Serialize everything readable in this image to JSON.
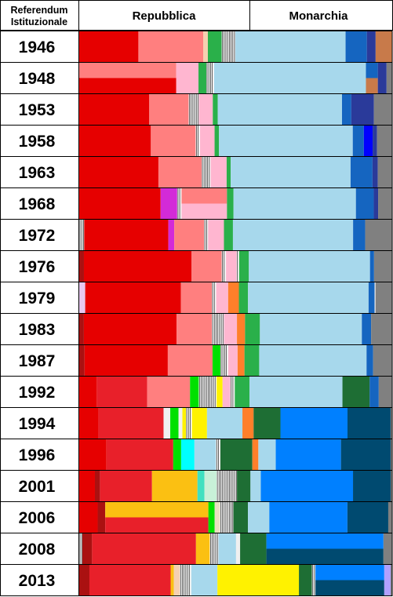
{
  "header": {
    "corner_line1": "Referendum",
    "corner_line2": "Istituzionale",
    "left_label": "Repubblica",
    "right_label": "Monarchia"
  },
  "chart_data": {
    "type": "bar",
    "orientation": "horizontal-stacked",
    "note_scale": "each row spans 0-100% of the vote; divider column marks the 1946 referendum split",
    "divider_value": 54.3,
    "categories": [
      "1946",
      "1948",
      "1953",
      "1958",
      "1963",
      "1968",
      "1972",
      "1976",
      "1979",
      "1983",
      "1987",
      "1992",
      "1994",
      "1996",
      "2001",
      "2006",
      "2008",
      "2013"
    ],
    "rows": [
      {
        "year": "1946",
        "segments": [
          {
            "v": 18.9,
            "c": "#e60000"
          },
          {
            "v": 20.7,
            "c": "#ff7f7f"
          },
          {
            "v": 1.5,
            "c": "#f5d0b0"
          },
          {
            "v": 4.4,
            "c": "#2ab04a"
          },
          {
            "v": 4.4,
            "c": "#f0f0f0",
            "striped": true
          },
          {
            "v": 35.2,
            "c": "#a7d8ec"
          },
          {
            "v": 6.8,
            "c": "#1565c0"
          },
          {
            "v": 2.8,
            "c": "#2a3a9a"
          },
          {
            "v": 5.3,
            "c": "#c87a4a"
          }
        ]
      },
      {
        "year": "1948",
        "segments": [
          {
            "v": 31.0,
            "c": "#e60000",
            "split": [
              {
                "v": 31.0,
                "c": "#ff7f7f",
                "top": true
              }
            ]
          },
          {
            "v": 7.1,
            "c": "#ffb6d0"
          },
          {
            "v": 2.5,
            "c": "#2ab04a"
          },
          {
            "v": 2.5,
            "c": "#f0f0f0",
            "striped": true
          },
          {
            "v": 48.5,
            "c": "#a7d8ec"
          },
          {
            "v": 3.8,
            "c": "#1565c0",
            "bottom": "#c87a4a"
          },
          {
            "v": 2.8,
            "c": "#2a3a9a"
          },
          {
            "v": 1.8,
            "c": "#808080"
          }
        ]
      },
      {
        "year": "1953",
        "segments": [
          {
            "v": 22.6,
            "c": "#e60000"
          },
          {
            "v": 12.7,
            "c": "#ff7f7f"
          },
          {
            "v": 3.3,
            "c": "#f0f0f0",
            "striped": true
          },
          {
            "v": 4.5,
            "c": "#ffb6d0"
          },
          {
            "v": 1.6,
            "c": "#2ab04a"
          },
          {
            "v": 40.1,
            "c": "#a7d8ec"
          },
          {
            "v": 3.0,
            "c": "#1565c0"
          },
          {
            "v": 7.3,
            "c": "#2a3a9a"
          },
          {
            "v": 5.9,
            "c": "#808080"
          }
        ]
      },
      {
        "year": "1958",
        "segments": [
          {
            "v": 22.7,
            "c": "#e60000"
          },
          {
            "v": 14.2,
            "c": "#ff7f7f"
          },
          {
            "v": 1.4,
            "c": "#f0f0f0",
            "striped": true
          },
          {
            "v": 4.6,
            "c": "#ffb6d0"
          },
          {
            "v": 1.4,
            "c": "#2ab04a"
          },
          {
            "v": 42.4,
            "c": "#a7d8ec"
          },
          {
            "v": 3.5,
            "c": "#1565c0"
          },
          {
            "v": 2.8,
            "c": "#0000ff"
          },
          {
            "v": 1.4,
            "c": "#2a3a9a"
          },
          {
            "v": 4.8,
            "c": "#808080"
          }
        ]
      },
      {
        "year": "1963",
        "segments": [
          {
            "v": 25.3,
            "c": "#e60000"
          },
          {
            "v": 13.8,
            "c": "#ff7f7f"
          },
          {
            "v": 2.9,
            "c": "#f0f0f0",
            "striped": true
          },
          {
            "v": 5.1,
            "c": "#ffb6d0"
          },
          {
            "v": 1.3,
            "c": "#2ab04a"
          },
          {
            "v": 38.3,
            "c": "#a7d8ec"
          },
          {
            "v": 7.0,
            "c": "#1565c0"
          },
          {
            "v": 1.7,
            "c": "#2a3a9a"
          },
          {
            "v": 4.6,
            "c": "#808080"
          }
        ]
      },
      {
        "year": "1968",
        "segments": [
          {
            "v": 26.0,
            "c": "#e60000"
          },
          {
            "v": 5.3,
            "c": "#d32ad8"
          },
          {
            "v": 1.4,
            "c": "#f0f0f0",
            "striped": true
          },
          {
            "v": 14.5,
            "c": "#ff7f7f",
            "bottom": "#ffb6d0"
          },
          {
            "v": 2.1,
            "c": "#2ab04a"
          },
          {
            "v": 39.1,
            "c": "#a7d8ec"
          },
          {
            "v": 5.7,
            "c": "#1565c0"
          },
          {
            "v": 1.4,
            "c": "#2a3a9a"
          },
          {
            "v": 4.5,
            "c": "#808080"
          }
        ]
      },
      {
        "year": "1972",
        "segments": [
          {
            "v": 1.6,
            "c": "#f0f0f0",
            "striped": true
          },
          {
            "v": 27.1,
            "c": "#e60000"
          },
          {
            "v": 1.9,
            "c": "#d32ad8"
          },
          {
            "v": 9.6,
            "c": "#ff7f7f"
          },
          {
            "v": 1.3,
            "c": "#f0f0f0",
            "striped": true
          },
          {
            "v": 5.1,
            "c": "#ffb6d0"
          },
          {
            "v": 2.9,
            "c": "#2ab04a"
          },
          {
            "v": 38.7,
            "c": "#a7d8ec"
          },
          {
            "v": 3.9,
            "c": "#1565c0"
          },
          {
            "v": 8.7,
            "c": "#808080"
          }
        ]
      },
      {
        "year": "1976",
        "segments": [
          {
            "v": 1.5,
            "c": "#aa1111"
          },
          {
            "v": 34.4,
            "c": "#e60000"
          },
          {
            "v": 9.6,
            "c": "#ff7f7f"
          },
          {
            "v": 1.4,
            "c": "#f0f0f0",
            "striped": true
          },
          {
            "v": 3.4,
            "c": "#ffb6d0"
          },
          {
            "v": 0.8,
            "c": "#f0f0f0",
            "striped": true
          },
          {
            "v": 3.1,
            "c": "#2ab04a"
          },
          {
            "v": 38.7,
            "c": "#a7d8ec"
          },
          {
            "v": 1.3,
            "c": "#1565c0"
          },
          {
            "v": 5.8,
            "c": "#808080"
          }
        ]
      },
      {
        "year": "1979",
        "segments": [
          {
            "v": 1.9,
            "c": "#e8c8f0"
          },
          {
            "v": 30.4,
            "c": "#e60000"
          },
          {
            "v": 9.8,
            "c": "#ff7f7f"
          },
          {
            "v": 1.4,
            "c": "#f0f0f0",
            "striped": true
          },
          {
            "v": 3.8,
            "c": "#ffb6d0"
          },
          {
            "v": 3.4,
            "c": "#ff7f2a"
          },
          {
            "v": 2.9,
            "c": "#2ab04a"
          },
          {
            "v": 38.3,
            "c": "#a7d8ec"
          },
          {
            "v": 1.9,
            "c": "#1565c0"
          },
          {
            "v": 0.3,
            "c": "#f0f0f0"
          },
          {
            "v": 5.3,
            "c": "#808080"
          }
        ]
      },
      {
        "year": "1983",
        "segments": [
          {
            "v": 1.5,
            "c": "#aa1111"
          },
          {
            "v": 29.9,
            "c": "#e60000"
          },
          {
            "v": 11.4,
            "c": "#ff7f7f"
          },
          {
            "v": 3.9,
            "c": "#f0f0f0",
            "striped": true
          },
          {
            "v": 4.2,
            "c": "#ffb6d0"
          },
          {
            "v": 2.6,
            "c": "#ff7f2a"
          },
          {
            "v": 4.8,
            "c": "#2ab04a"
          },
          {
            "v": 32.9,
            "c": "#a7d8ec"
          },
          {
            "v": 3.0,
            "c": "#1565c0"
          },
          {
            "v": 6.8,
            "c": "#808080"
          }
        ]
      },
      {
        "year": "1987",
        "segments": [
          {
            "v": 1.7,
            "c": "#aa1111"
          },
          {
            "v": 26.6,
            "c": "#e60000"
          },
          {
            "v": 14.3,
            "c": "#ff7f7f"
          },
          {
            "v": 2.5,
            "c": "#00e000"
          },
          {
            "v": 2.5,
            "c": "#f0f0f0",
            "striped": true
          },
          {
            "v": 3.0,
            "c": "#ffb6d0"
          },
          {
            "v": 2.2,
            "c": "#ff7f2a"
          },
          {
            "v": 4.7,
            "c": "#2ab04a"
          },
          {
            "v": 34.3,
            "c": "#a7d8ec"
          },
          {
            "v": 2.1,
            "c": "#1565c0"
          },
          {
            "v": 6.1,
            "c": "#808080"
          }
        ]
      },
      {
        "year": "1992",
        "segments": [
          {
            "v": 5.6,
            "c": "#e60000"
          },
          {
            "v": 16.1,
            "c": "#e8202a"
          },
          {
            "v": 13.7,
            "c": "#ff7f7f"
          },
          {
            "v": 2.8,
            "c": "#00e000"
          },
          {
            "v": 5.7,
            "c": "#f0f0f0",
            "striped": true
          },
          {
            "v": 1.9,
            "c": "#fff200"
          },
          {
            "v": 2.5,
            "c": "#ffb6d0"
          },
          {
            "v": 1.4,
            "c": "#f0f0f0",
            "striped": true
          },
          {
            "v": 4.7,
            "c": "#2ab04a"
          },
          {
            "v": 29.7,
            "c": "#a7d8ec"
          },
          {
            "v": 8.7,
            "c": "#1e6e34"
          },
          {
            "v": 2.9,
            "c": "#1565c0"
          },
          {
            "v": 4.3,
            "c": "#808080"
          }
        ]
      },
      {
        "year": "1994",
        "segments": [
          {
            "v": 6.0,
            "c": "#e60000"
          },
          {
            "v": 20.4,
            "c": "#e8202a"
          },
          {
            "v": 2.1,
            "c": "#f0f0f0"
          },
          {
            "v": 2.6,
            "c": "#00e000"
          },
          {
            "v": 1.2,
            "c": "#f0f0f0"
          },
          {
            "v": 1.1,
            "c": "#fff200"
          },
          {
            "v": 1.9,
            "c": "#f0f0f0",
            "striped": true
          },
          {
            "v": 4.7,
            "c": "#fff200"
          },
          {
            "v": 11.1,
            "c": "#a7d8ec"
          },
          {
            "v": 3.5,
            "c": "#ff7f2a"
          },
          {
            "v": 8.4,
            "c": "#1e6e34"
          },
          {
            "v": 21.0,
            "c": "#0080ff"
          },
          {
            "v": 13.5,
            "c": "#004a70"
          },
          {
            "v": 0.5,
            "c": "#808080"
          }
        ]
      },
      {
        "year": "1996",
        "segments": [
          {
            "v": 8.6,
            "c": "#e60000"
          },
          {
            "v": 21.1,
            "c": "#e8202a"
          },
          {
            "v": 2.5,
            "c": "#00e000"
          },
          {
            "v": 4.2,
            "c": "#00ffff"
          },
          {
            "v": 6.8,
            "c": "#a7d8ec"
          },
          {
            "v": 1.4,
            "c": "#f0f0f0",
            "striped": true
          },
          {
            "v": 10.1,
            "c": "#1e6e34"
          },
          {
            "v": 1.9,
            "c": "#ff7f2a"
          },
          {
            "v": 5.5,
            "c": "#a7d8ec"
          },
          {
            "v": 20.6,
            "c": "#0080ff"
          },
          {
            "v": 15.7,
            "c": "#004a70"
          },
          {
            "v": 0.5,
            "c": "#808080"
          }
        ]
      },
      {
        "year": "2001",
        "segments": [
          {
            "v": 5.0,
            "c": "#e60000"
          },
          {
            "v": 1.6,
            "c": "#aa1111"
          },
          {
            "v": 16.6,
            "c": "#e8202a"
          },
          {
            "v": 14.5,
            "c": "#fbc012"
          },
          {
            "v": 2.2,
            "c": "#40e0c0"
          },
          {
            "v": 3.9,
            "c": "#c8f0d8"
          },
          {
            "v": 2.2,
            "c": "#f0f0f0",
            "striped": true
          },
          {
            "v": 4.3,
            "c": "#f0f0f0",
            "striped": true
          },
          {
            "v": 4.3,
            "c": "#1e6e34"
          },
          {
            "v": 3.3,
            "c": "#a7d8ec"
          },
          {
            "v": 29.4,
            "c": "#0080ff"
          },
          {
            "v": 12.0,
            "c": "#004a70"
          },
          {
            "v": 0.5,
            "c": "#808080"
          }
        ]
      },
      {
        "year": "2006",
        "segments": [
          {
            "v": 5.6,
            "c": "#e60000"
          },
          {
            "v": 2.3,
            "c": "#aa1111"
          },
          {
            "v": 31.3,
            "c": "#fbc012",
            "bottom": "#e8202a"
          },
          {
            "v": 1.9,
            "c": "#00e000"
          },
          {
            "v": 1.6,
            "c": "#e8e0c0"
          },
          {
            "v": 4.1,
            "c": "#f0f0f0",
            "striped": true
          },
          {
            "v": 4.4,
            "c": "#1e6e34"
          },
          {
            "v": 6.5,
            "c": "#a7d8ec"
          },
          {
            "v": 23.7,
            "c": "#0080ff"
          },
          {
            "v": 12.4,
            "c": "#004a70"
          },
          {
            "v": 1.2,
            "c": "#808080"
          }
        ]
      },
      {
        "year": "2008",
        "segments": [
          {
            "v": 1.0,
            "c": "#f0f0f0",
            "striped": true
          },
          {
            "v": 3.1,
            "c": "#aa1111"
          },
          {
            "v": 33.2,
            "c": "#e8202a"
          },
          {
            "v": 4.4,
            "c": "#fbc012"
          },
          {
            "v": 2.8,
            "c": "#f0f0f0",
            "striped": true
          },
          {
            "v": 5.6,
            "c": "#a7d8ec"
          },
          {
            "v": 1.3,
            "c": "#f0f0f0"
          },
          {
            "v": 8.4,
            "c": "#1e6e34"
          },
          {
            "v": 37.4,
            "c": "#0080ff",
            "bottom": "#004a70"
          },
          {
            "v": 2.8,
            "c": "#808080"
          }
        ]
      },
      {
        "year": "2013",
        "segments": [
          {
            "v": 3.2,
            "c": "#aa1111"
          },
          {
            "v": 25.5,
            "c": "#e8202a"
          },
          {
            "v": 1.0,
            "c": "#fbc012"
          },
          {
            "v": 1.9,
            "c": "#f5d0b0"
          },
          {
            "v": 3.6,
            "c": "#f0f0f0",
            "striped": true
          },
          {
            "v": 8.2,
            "c": "#a7d8ec"
          },
          {
            "v": 25.6,
            "c": "#fff200"
          },
          {
            "v": 4.1,
            "c": "#1e6e34"
          },
          {
            "v": 1.1,
            "c": "#f0f0f0",
            "striped": true
          },
          {
            "v": 21.6,
            "c": "#0080ff",
            "bottom": "#004a70"
          },
          {
            "v": 2.0,
            "c": "#b0a0ff"
          },
          {
            "v": 0.5,
            "c": "#808080"
          }
        ]
      }
    ]
  }
}
